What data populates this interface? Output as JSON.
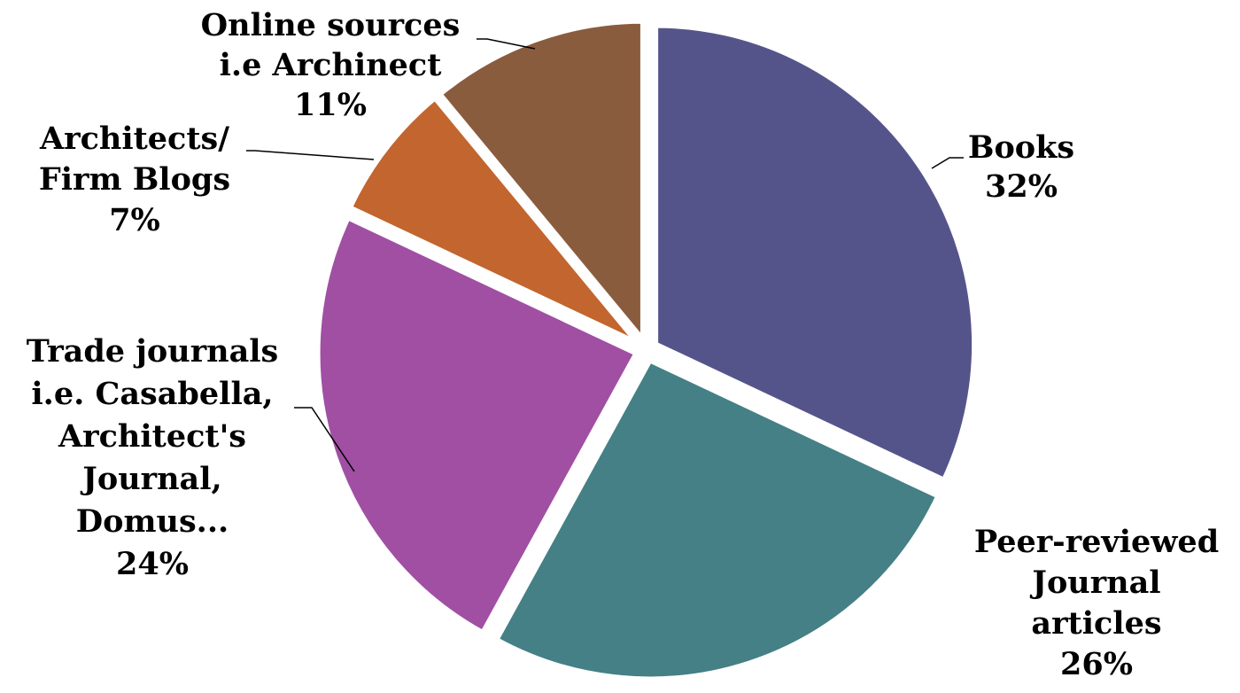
{
  "chart_data": {
    "type": "pie",
    "title": "",
    "legend": "none",
    "slices": [
      {
        "name": "Books",
        "label_lines": [
          "Books",
          "32%"
        ],
        "value": 32,
        "color": "#55548a"
      },
      {
        "name": "Peer-reviewed Journal articles",
        "label_lines": [
          "Peer-reviewed",
          "Journal",
          "articles",
          "26%"
        ],
        "value": 26,
        "color": "#448086"
      },
      {
        "name": "Trade journals i.e. Casabella, Architect's Journal, Domus...",
        "label_lines": [
          "Trade journals",
          "i.e. Casabella,",
          "Architect's",
          "Journal,",
          "Domus...",
          "24%"
        ],
        "value": 24,
        "color": "#a04fa3"
      },
      {
        "name": "Architects/ Firm Blogs",
        "label_lines": [
          "Architects/",
          "Firm Blogs",
          "7%"
        ],
        "value": 7,
        "color": "#c2652e"
      },
      {
        "name": "Online sources i.e Archinect",
        "label_lines": [
          "Online sources",
          "i.e Archinect",
          "11%"
        ],
        "value": 11,
        "color": "#8a5c3e"
      }
    ]
  }
}
